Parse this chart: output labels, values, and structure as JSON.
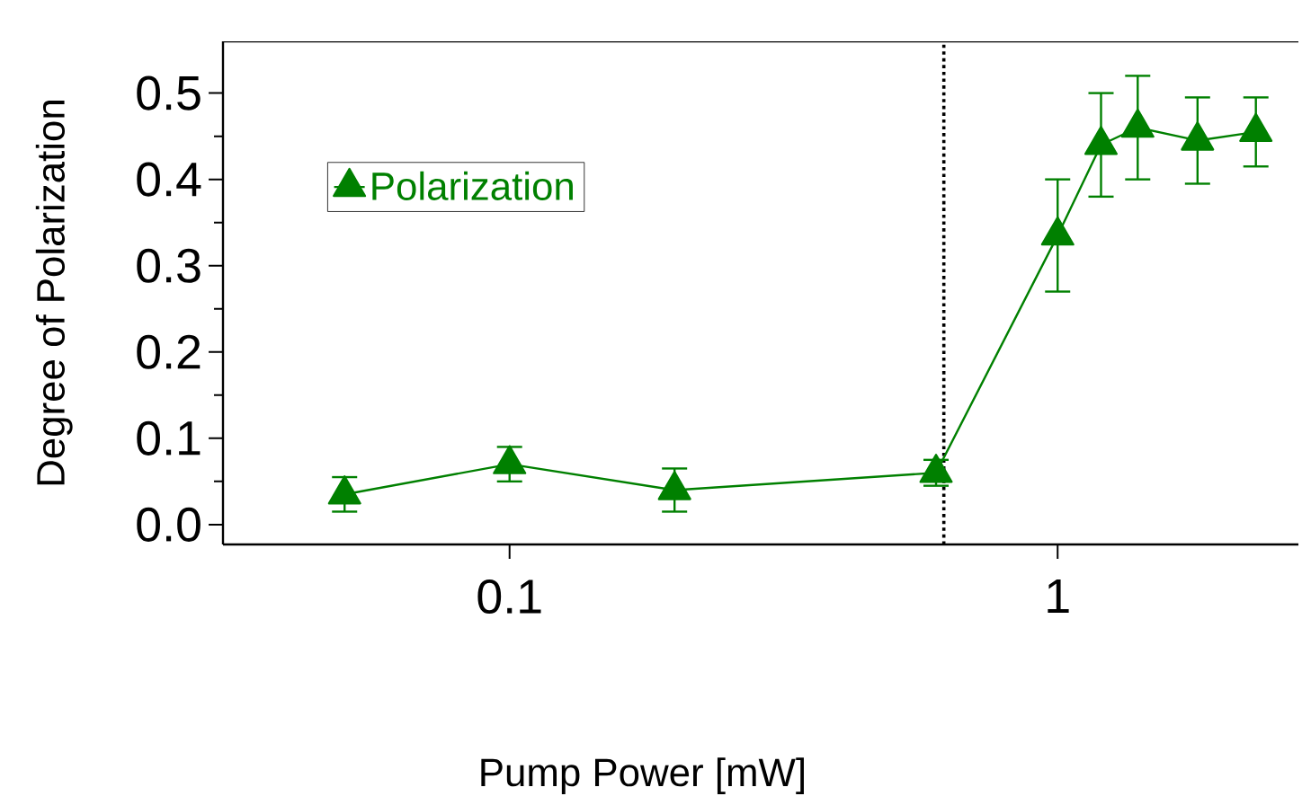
{
  "chart_data": {
    "type": "line",
    "xlabel": "Pump Power [mW]",
    "ylabel": "Degree of Polarization",
    "log": "x",
    "xlim": [
      0.03,
      2.75
    ],
    "ylim": [
      -0.023,
      0.56
    ],
    "xticks": [
      0.1,
      1
    ],
    "yticks": [
      {
        "value": 0,
        "label": "0.0"
      },
      0.1,
      0.2,
      0.3,
      0.4,
      0.5
    ],
    "x": [
      0.05,
      0.1,
      0.2,
      0.6,
      1.0,
      1.2,
      1.4,
      1.8,
      2.3
    ],
    "series": [
      {
        "name": "Polarization",
        "color": "#008000",
        "values": [
          0.035,
          0.07,
          0.04,
          0.06,
          0.335,
          0.44,
          0.46,
          0.445,
          0.455
        ],
        "errors": [
          0.02,
          0.02,
          0.025,
          0.015,
          0.065,
          0.06,
          0.06,
          0.05,
          0.04
        ]
      }
    ],
    "ref_lines": [
      {
        "axis": "x",
        "value": 0.62,
        "color": "#000000",
        "line_style": "dotted"
      }
    ],
    "marker": "triangle",
    "line_style": "solid",
    "legend": "top left",
    "grid": false
  }
}
